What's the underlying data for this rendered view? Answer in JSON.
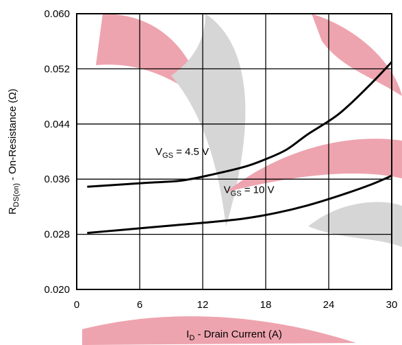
{
  "chart_data": {
    "type": "line",
    "title": "",
    "xlabel": {
      "main": "I",
      "sub": "D",
      "rest": " - Drain Current (A)"
    },
    "ylabel": {
      "main": "R",
      "sub": "DS(on)",
      "rest": " - On-Resistance (Ω)"
    },
    "xlim": [
      0,
      30
    ],
    "ylim": [
      0.02,
      0.06
    ],
    "xticks": [
      0,
      6,
      12,
      18,
      24,
      30
    ],
    "yticks": [
      0.02,
      0.028,
      0.036,
      0.044,
      0.052,
      0.06
    ],
    "xtick_labels": [
      "0",
      "6",
      "12",
      "18",
      "24",
      "30"
    ],
    "ytick_labels": [
      "0.020",
      "0.028",
      "0.036",
      "0.044",
      "0.052",
      "0.060"
    ],
    "grid": true,
    "series": [
      {
        "label_main": "V",
        "label_sub": "GS",
        "label_rest": " = 4.5 V",
        "label_at": {
          "x": 7.5,
          "y": 0.0395
        },
        "x": [
          1,
          4,
          7,
          10,
          13,
          16,
          18,
          20,
          22,
          25,
          28,
          30
        ],
        "y": [
          0.0349,
          0.0352,
          0.0355,
          0.0358,
          0.0367,
          0.0378,
          0.0389,
          0.0403,
          0.0425,
          0.0455,
          0.0498,
          0.053
        ]
      },
      {
        "label_main": "V",
        "label_sub": "GS",
        "label_rest": " = 10 V",
        "label_at": {
          "x": 14,
          "y": 0.034
        },
        "x": [
          1,
          4,
          7,
          10,
          13,
          16,
          19,
          22,
          25,
          28,
          30
        ],
        "y": [
          0.0282,
          0.0286,
          0.029,
          0.0294,
          0.0298,
          0.0303,
          0.0311,
          0.0322,
          0.0336,
          0.0352,
          0.0365
        ]
      }
    ]
  }
}
